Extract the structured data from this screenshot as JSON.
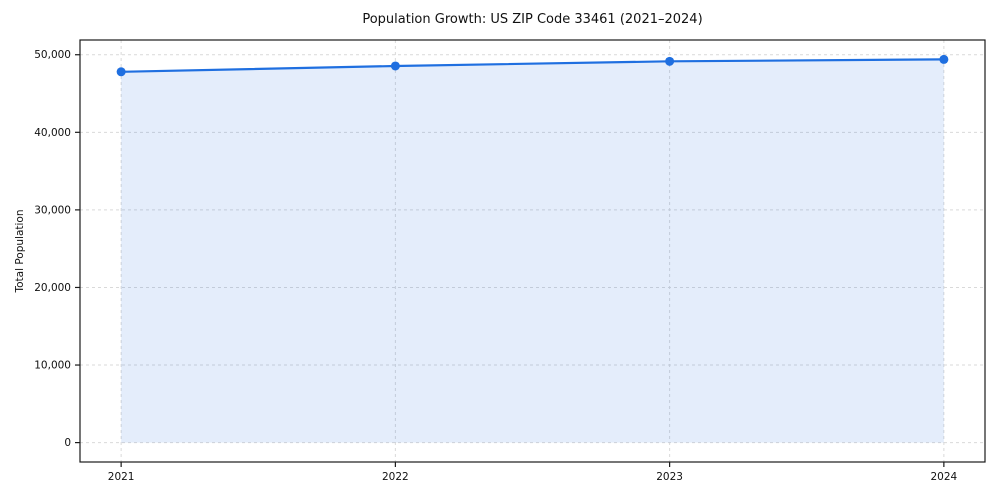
{
  "chart_title": "Population Growth: US ZIP Code 33461 (2021–2024)",
  "chart_data": {
    "type": "area",
    "title": "Population Growth: US ZIP Code 33461 (2021–2024)",
    "xlabel": "",
    "ylabel": "Total Population",
    "x": [
      2021,
      2022,
      2023,
      2024
    ],
    "categories": [
      "2021",
      "2022",
      "2023",
      "2024"
    ],
    "series": [
      {
        "name": "Total Population",
        "values": [
          47800,
          48550,
          49150,
          49400
        ]
      }
    ],
    "xlim": [
      2020.85,
      2024.15
    ],
    "ylim": [
      -2500,
      51900
    ],
    "yticks": [
      0,
      10000,
      20000,
      30000,
      40000,
      50000
    ],
    "ytick_labels": [
      "0",
      "10,000",
      "20,000",
      "30,000",
      "40,000",
      "50,000"
    ],
    "xticks": [
      2021,
      2022,
      2023,
      2024
    ],
    "xtick_labels": [
      "2021",
      "2022",
      "2023",
      "2024"
    ],
    "grid": "dashed-both",
    "legend_position": "none",
    "line_color": "#1f6fe0",
    "marker_color": "#1f6fe0",
    "fill_color": "rgba(31,111,224,0.12)",
    "grid_color": "#d9d9d9",
    "spine_color": "#1a1a1a",
    "area_baseline": 0
  }
}
